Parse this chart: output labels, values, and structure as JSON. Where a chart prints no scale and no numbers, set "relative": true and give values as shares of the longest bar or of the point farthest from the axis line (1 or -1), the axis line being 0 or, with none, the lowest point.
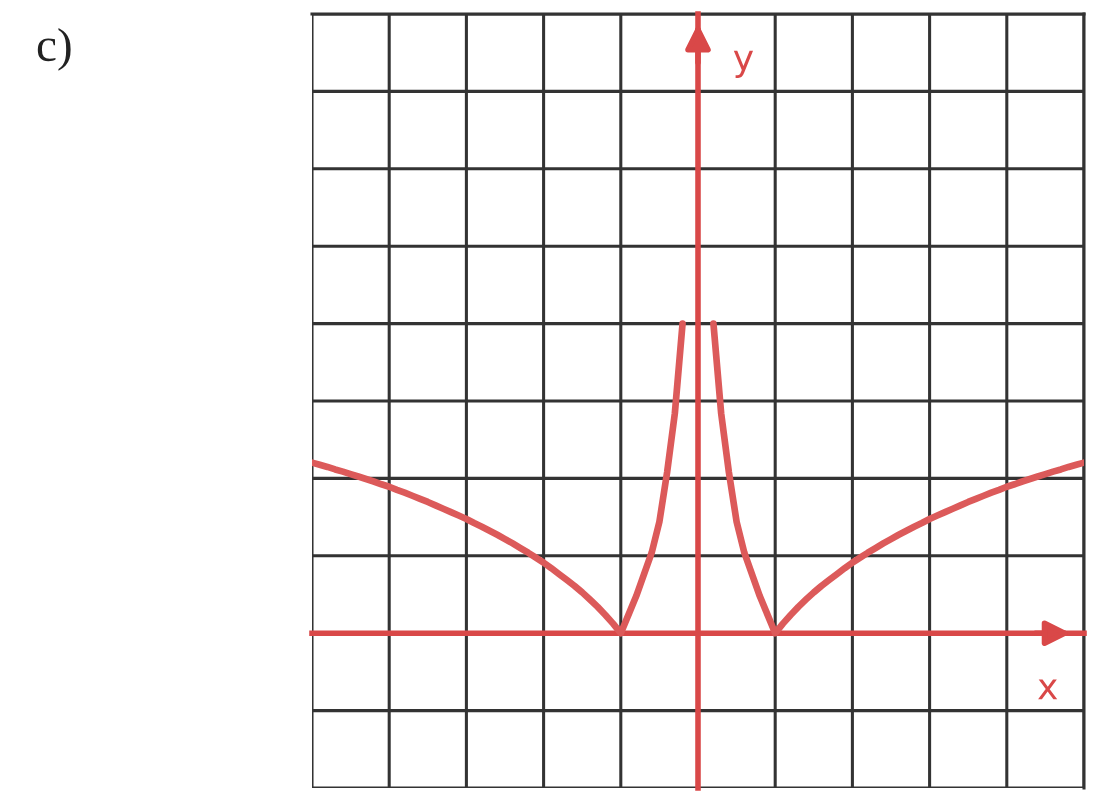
{
  "chart_data": {
    "type": "line",
    "title": "c)",
    "xlabel": "x",
    "annotations": [
      "y"
    ],
    "relative": true,
    "grid": true,
    "line_style": "solid",
    "categories": [
      null,
      null,
      null,
      null,
      null,
      null,
      null,
      null,
      null,
      null,
      null,
      null,
      null,
      null,
      null,
      null,
      null,
      null,
      null,
      null,
      null,
      null,
      null,
      null,
      null,
      null,
      null,
      null,
      null,
      null,
      null,
      null,
      null,
      null,
      null,
      null,
      null,
      null,
      null,
      null,
      null,
      null,
      null,
      null,
      null,
      null,
      null,
      null,
      null,
      null,
      null,
      null,
      null,
      null,
      null,
      null,
      null,
      null,
      null,
      null,
      null,
      null,
      null,
      null,
      null,
      null,
      null,
      null,
      null,
      null,
      null,
      null,
      null,
      null,
      null,
      null,
      null,
      null,
      null,
      null,
      null,
      null,
      null,
      null,
      null,
      null,
      null,
      null,
      null,
      null,
      null,
      null,
      null,
      null,
      null,
      null,
      null,
      null,
      null,
      null,
      null
    ],
    "series": [
      {
        "color": "#dc5a5a",
        "values": [
          0.551,
          0.544,
          0.537,
          0.529,
          0.522,
          0.514,
          0.506,
          0.498,
          0.49,
          0.481,
          0.473,
          0.463,
          0.454,
          0.444,
          0.434,
          0.424,
          0.413,
          0.402,
          0.391,
          0.38,
          0.369,
          0.356,
          0.344,
          0.331,
          0.318,
          0.304,
          0.29,
          0.275,
          0.26,
          0.244,
          0.228,
          0.21,
          0.191,
          0.172,
          0.153,
          0.132,
          0.109,
          0.085,
          0.059,
          0.031,
          0,
          0.06,
          0.12,
          0.19,
          0.26,
          0.36,
          0.52,
          0.71,
          1.0,
          null,
          null,
          null,
          null,
          null,
          null,
          null,
          null,
          null,
          null,
          null,
          null,
          null,
          null,
          null,
          null,
          null,
          null,
          null,
          null,
          null,
          null,
          null,
          null,
          null,
          null,
          null,
          null,
          null,
          null,
          null,
          null,
          null,
          null,
          null,
          null,
          null,
          null,
          null,
          null,
          null,
          null,
          null,
          null,
          null,
          null,
          null,
          null,
          null,
          null,
          null,
          null
        ]
      },
      {
        "color": "#dc5a5a",
        "values": [
          null,
          null,
          null,
          null,
          null,
          null,
          null,
          null,
          null,
          null,
          null,
          null,
          null,
          null,
          null,
          null,
          null,
          null,
          null,
          null,
          null,
          null,
          null,
          null,
          null,
          null,
          null,
          null,
          null,
          null,
          null,
          null,
          null,
          null,
          null,
          null,
          null,
          null,
          null,
          null,
          null,
          null,
          null,
          null,
          null,
          null,
          null,
          null,
          null,
          null,
          null,
          null,
          1.0,
          0.71,
          0.52,
          0.36,
          0.26,
          0.19,
          0.12,
          0.06,
          0,
          0.031,
          0.059,
          0.085,
          0.109,
          0.132,
          0.153,
          0.172,
          0.191,
          0.21,
          0.228,
          0.244,
          0.26,
          0.275,
          0.29,
          0.304,
          0.318,
          0.331,
          0.344,
          0.356,
          0.369,
          0.38,
          0.391,
          0.402,
          0.413,
          0.424,
          0.434,
          0.444,
          0.454,
          0.463,
          0.473,
          0.481,
          0.49,
          0.498,
          0.506,
          0.514,
          0.522,
          0.529,
          0.537,
          0.544,
          0.551
        ]
      }
    ]
  }
}
